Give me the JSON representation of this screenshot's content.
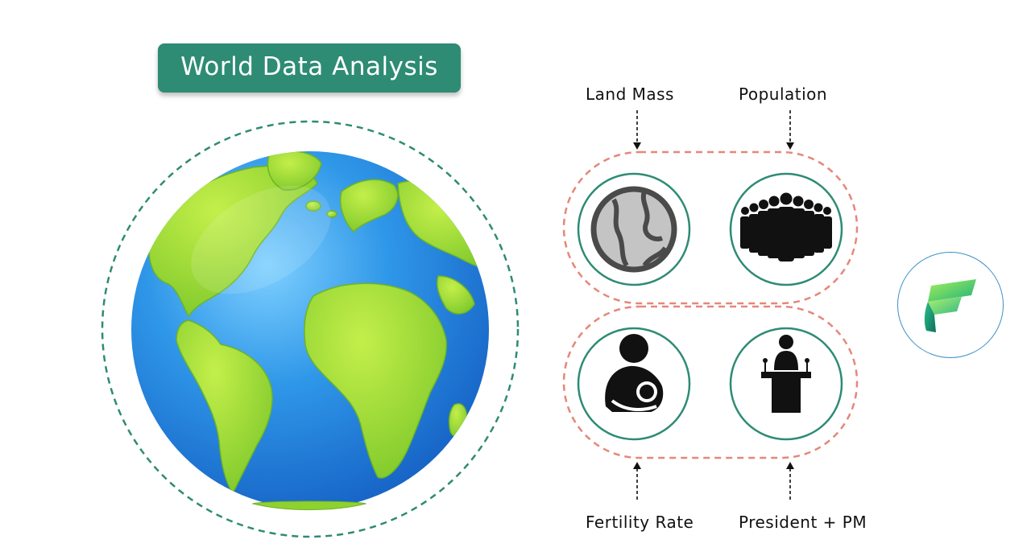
{
  "title": "World Data Analysis",
  "diagram": {
    "top_labels": [
      "Land Mass",
      "Population"
    ],
    "bottom_labels": [
      "Fertility Rate",
      "President + PM"
    ]
  },
  "icons": {
    "globe": "globe-3d-icon",
    "land_mass": "land-mass-globe-icon",
    "population": "crowd-icon",
    "fertility": "mother-baby-icon",
    "politics": "speaker-podium-icon",
    "logo": "fabric-logo-icon"
  },
  "colors": {
    "accent_green": "#2e8b74",
    "dashed_salmon": "#e5877a",
    "ocean_blue": "#2f8ee0",
    "land_green": "#8fd12f"
  }
}
